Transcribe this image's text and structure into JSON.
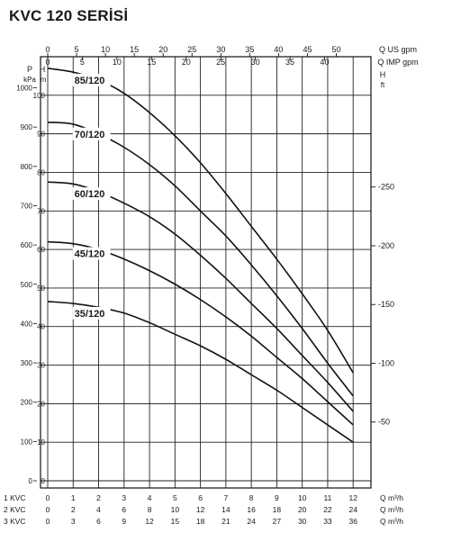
{
  "chart_data": {
    "type": "line",
    "title": "KVC 120 SERİSİ",
    "top_axes": [
      {
        "label": "Q US gpm",
        "range": [
          0,
          56
        ],
        "ticks": [
          0,
          5,
          10,
          15,
          20,
          25,
          30,
          35,
          40,
          45,
          50
        ]
      },
      {
        "label": "Q IMP gpm",
        "range": [
          0,
          46.7
        ],
        "ticks": [
          0,
          5,
          10,
          15,
          20,
          25,
          30,
          35,
          40
        ]
      }
    ],
    "left_axes": [
      {
        "label": "P",
        "unit": "kPa",
        "ticks": [
          0,
          100,
          200,
          300,
          400,
          500,
          600,
          700,
          800,
          900,
          1000
        ]
      },
      {
        "label": "H",
        "unit": "m",
        "range": [
          0,
          110
        ],
        "ticks": [
          0,
          10,
          20,
          30,
          40,
          50,
          60,
          70,
          80,
          90,
          100
        ]
      }
    ],
    "right_axis": {
      "label": "H",
      "unit": "ft",
      "ticks": [
        50,
        100,
        150,
        200,
        250
      ]
    },
    "bottom_axes": [
      {
        "label": "1 KVC",
        "unit": "Q m³/h",
        "ticks": [
          0,
          1,
          2,
          3,
          4,
          5,
          6,
          7,
          8,
          9,
          10,
          11,
          12
        ]
      },
      {
        "label": "2 KVC",
        "unit": "Q m³/h",
        "ticks": [
          0,
          2,
          4,
          6,
          8,
          10,
          12,
          14,
          16,
          18,
          20,
          22,
          24
        ]
      },
      {
        "label": "3 KVC",
        "unit": "Q m³/h",
        "ticks": [
          0,
          3,
          6,
          9,
          12,
          15,
          18,
          21,
          24,
          27,
          30,
          33,
          36
        ]
      }
    ],
    "grid": true,
    "x_range": [
      0,
      12.7
    ],
    "x_units": "1 KVC Q m³/h",
    "series": [
      {
        "name": "85/120",
        "x": [
          0,
          1,
          2,
          3,
          4,
          5,
          6,
          7,
          8,
          9,
          10,
          11,
          12
        ],
        "y": [
          107,
          106,
          104,
          100.5,
          95.5,
          89.5,
          82.5,
          74.5,
          66,
          57.5,
          48.5,
          39,
          28
        ]
      },
      {
        "name": "70/120",
        "x": [
          0,
          1,
          2,
          3,
          4,
          5,
          6,
          7,
          8,
          9,
          10,
          11,
          12
        ],
        "y": [
          93,
          92.5,
          90,
          86.5,
          82,
          76.5,
          70,
          63.5,
          56,
          48,
          39.5,
          30.5,
          22
        ]
      },
      {
        "name": "60/120",
        "x": [
          0,
          1,
          2,
          3,
          4,
          5,
          6,
          7,
          8,
          9,
          10,
          11,
          12
        ],
        "y": [
          77.5,
          77,
          75,
          72,
          68.5,
          64,
          58.5,
          52.5,
          46,
          39.5,
          32.5,
          25.5,
          18
        ]
      },
      {
        "name": "45/120",
        "x": [
          0,
          1,
          2,
          3,
          4,
          5,
          6,
          7,
          8,
          9,
          10,
          11,
          12
        ],
        "y": [
          62,
          61.5,
          60,
          57.5,
          54.5,
          51,
          47,
          42.5,
          37.5,
          32,
          26.5,
          20.5,
          14.5
        ]
      },
      {
        "name": "35/120",
        "x": [
          0,
          1,
          2,
          3,
          4,
          5,
          6,
          7,
          8,
          9,
          10,
          11,
          12
        ],
        "y": [
          46.5,
          46,
          45,
          43.5,
          41,
          38,
          35,
          31.5,
          27.5,
          23.5,
          19,
          14.5,
          10
        ]
      }
    ]
  }
}
